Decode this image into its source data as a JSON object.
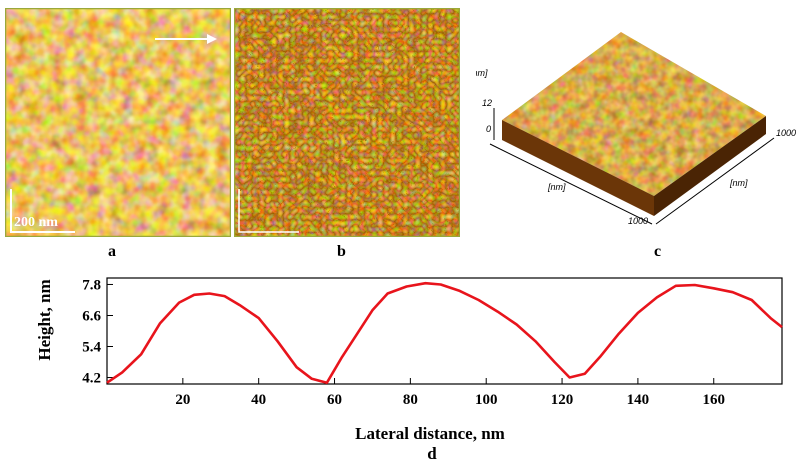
{
  "panels": {
    "a": {
      "label": "a",
      "scale_bar": "200 nm"
    },
    "b": {
      "label": "b"
    },
    "c": {
      "label": "c",
      "z_unit": "[nm]",
      "z_ticks": [
        "12",
        "0"
      ],
      "x_unit": "[nm]",
      "y_unit": "[nm]",
      "x_max": "1000",
      "y_max": "1000"
    },
    "d": {
      "label": "d"
    }
  },
  "colors": {
    "afm_dark": "#5a2a00",
    "afm_mid": "#b5641a",
    "afm_light": "#f7e08a",
    "frame": "#9aa83a",
    "curve": "#e8141c"
  },
  "chart_data": {
    "type": "line",
    "xlabel": "Lateral distance, nm",
    "ylabel": "Height, nm",
    "xlim": [
      0,
      178
    ],
    "ylim": [
      3.95,
      8.05
    ],
    "xticks": [
      "20",
      "40",
      "60",
      "80",
      "100",
      "120",
      "140",
      "160"
    ],
    "yticks": [
      "4.2",
      "5.4",
      "6.6",
      "7.8"
    ],
    "series": [
      {
        "x": [
          0,
          4,
          9,
          14,
          19,
          23,
          27,
          31,
          35,
          40,
          45,
          50,
          54,
          58,
          60,
          62,
          66,
          70,
          74,
          79,
          84,
          88,
          93,
          98,
          103,
          108,
          113,
          118,
          122,
          126,
          130,
          135,
          140,
          145,
          150,
          155,
          160,
          165,
          170,
          175,
          178
        ],
        "y": [
          4.0,
          4.4,
          5.1,
          6.3,
          7.1,
          7.4,
          7.45,
          7.35,
          7.0,
          6.5,
          5.6,
          4.6,
          4.15,
          4.0,
          4.5,
          5.0,
          5.9,
          6.8,
          7.45,
          7.72,
          7.85,
          7.8,
          7.55,
          7.2,
          6.75,
          6.25,
          5.6,
          4.8,
          4.2,
          4.35,
          5.0,
          5.9,
          6.7,
          7.3,
          7.75,
          7.78,
          7.65,
          7.5,
          7.2,
          6.5,
          6.15
        ]
      }
    ]
  }
}
